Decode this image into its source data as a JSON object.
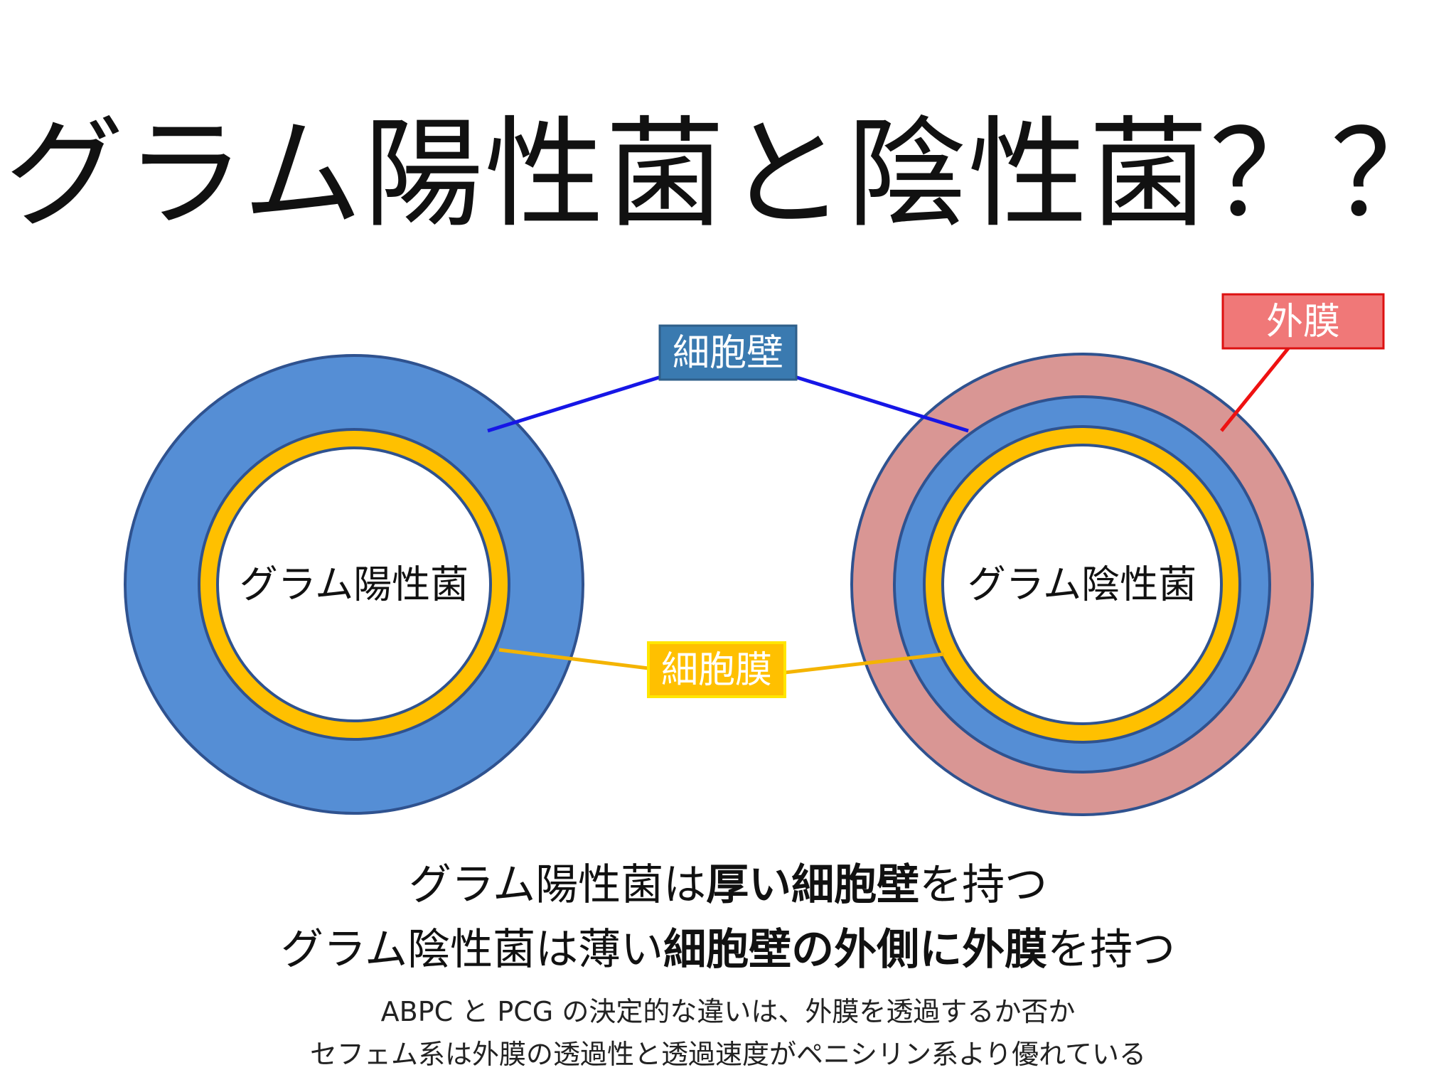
{
  "title": "グラム陽性菌と陰性菌？？",
  "diagram": {
    "positive_label": "グラム陽性菌",
    "negative_label": "グラム陰性菌",
    "callout_cell_wall": "細胞壁",
    "callout_cell_membrane": "細胞膜",
    "callout_outer_membrane": "外膜",
    "colors": {
      "cell_wall": "#558ed5",
      "cell_membrane": "#ffc000",
      "outer_membrane": "#d99694",
      "ring_border": "#2f528f",
      "wall_line": "#1616e6",
      "membrane_line": "#f4b400",
      "outer_line": "#ee1111",
      "wall_label_bg": "#3a7ab0",
      "membrane_label_bg": "#ffc000",
      "outer_label_bg": "#f07878"
    }
  },
  "description": {
    "line1": {
      "p1": "グラム陽性菌は",
      "b1": "厚い細胞壁",
      "p2": "を持つ"
    },
    "line2": {
      "p1": "グラム陰性菌は薄い",
      "b1": "細胞壁の外側に外膜",
      "p2": "を持つ"
    },
    "line3": "ABPC と PCG の決定的な違いは、外膜を透過するか否か",
    "line4": "セフェム系は外膜の透過性と透過速度がペニシリン系より優れている"
  }
}
